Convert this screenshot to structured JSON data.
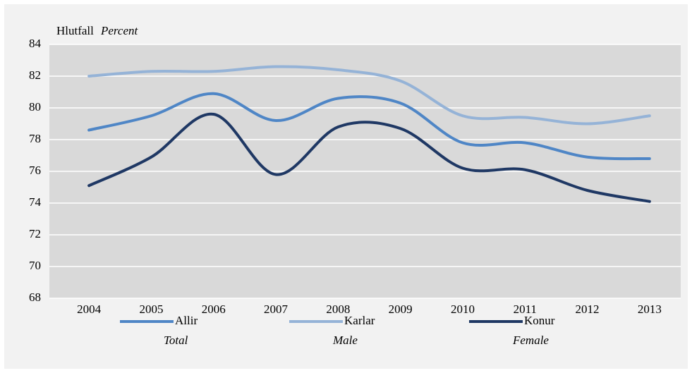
{
  "chart_data": {
    "type": "line",
    "y_label": "Hlutfall",
    "y_label_en": "Percent",
    "categories": [
      "2004",
      "2005",
      "2006",
      "2007",
      "2008",
      "2009",
      "2010",
      "2011",
      "2012",
      "2013"
    ],
    "series": [
      {
        "name": "Allir",
        "name_en": "Total",
        "color": "#4f86c6",
        "values": [
          78.6,
          79.5,
          80.9,
          79.2,
          80.6,
          80.3,
          77.8,
          77.8,
          76.9,
          76.8
        ]
      },
      {
        "name": "Karlar",
        "name_en": "Male",
        "color": "#95b3d7",
        "values": [
          82.0,
          82.3,
          82.3,
          82.6,
          82.4,
          81.7,
          79.5,
          79.4,
          79.0,
          79.5
        ]
      },
      {
        "name": "Konur",
        "name_en": "Female",
        "color": "#1f3864",
        "values": [
          75.1,
          76.9,
          79.6,
          75.8,
          78.8,
          78.7,
          76.2,
          76.1,
          74.8,
          74.1
        ]
      }
    ],
    "ylim": [
      68,
      84
    ],
    "yticks": [
      68,
      70,
      72,
      74,
      76,
      78,
      80,
      82,
      84
    ],
    "grid": true,
    "smooth": true,
    "legend": "bottom"
  }
}
